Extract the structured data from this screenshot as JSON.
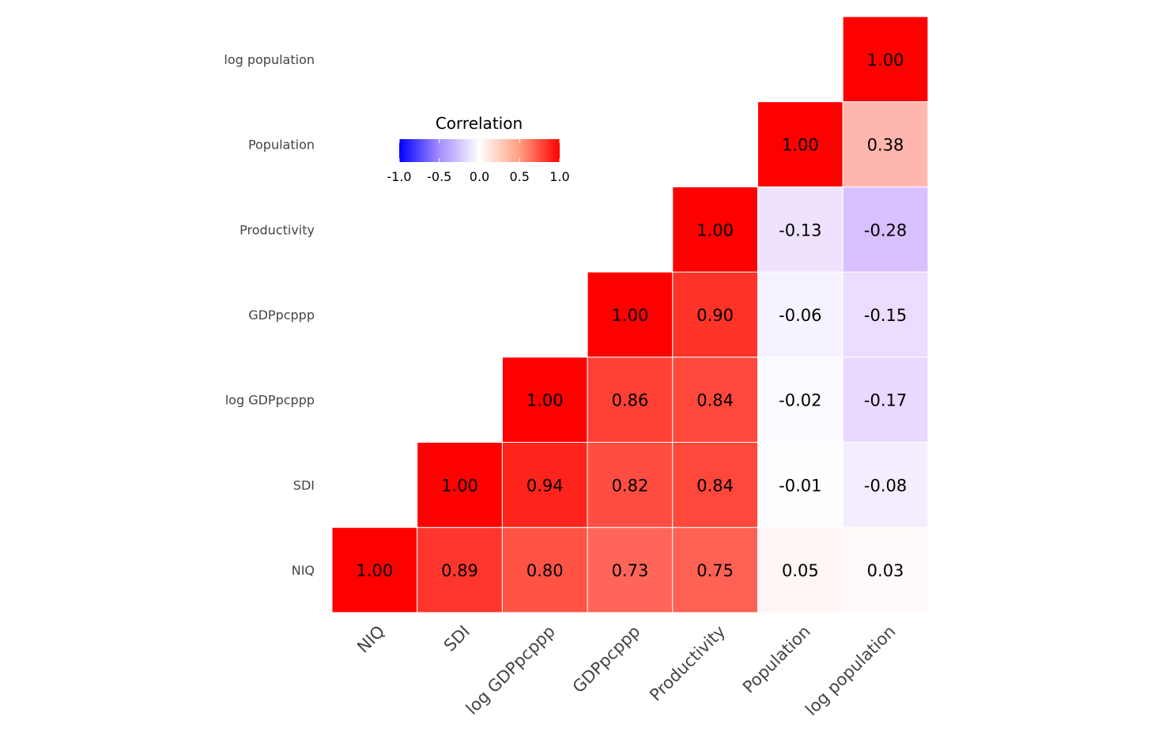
{
  "chart_data": {
    "type": "heatmap",
    "title": "",
    "variables": [
      "NIQ",
      "SDI",
      "log GDPpcppp",
      "GDPpcppp",
      "Productivity",
      "Population",
      "log population"
    ],
    "matrix": [
      [
        1.0,
        0.89,
        0.8,
        0.73,
        0.75,
        0.05,
        0.03
      ],
      [
        0.89,
        1.0,
        0.94,
        0.82,
        0.84,
        -0.01,
        -0.08
      ],
      [
        0.8,
        0.94,
        1.0,
        0.86,
        0.84,
        -0.02,
        -0.17
      ],
      [
        0.73,
        0.82,
        0.86,
        1.0,
        0.9,
        -0.06,
        -0.15
      ],
      [
        0.75,
        0.84,
        0.84,
        0.9,
        1.0,
        -0.13,
        -0.28
      ],
      [
        0.05,
        -0.01,
        -0.02,
        -0.06,
        -0.13,
        1.0,
        0.38
      ],
      [
        0.03,
        -0.08,
        -0.17,
        -0.15,
        -0.28,
        0.38,
        1.0
      ]
    ],
    "display": "upper-triangle",
    "legend": {
      "title": "Correlation",
      "ticks": [
        "-1.0",
        "-0.5",
        "0.0",
        "0.5",
        "1.0"
      ],
      "range": [
        -1,
        1
      ],
      "low_color": "#0000FF",
      "mid_color": "#FFFFFF",
      "high_color": "#FF0000",
      "placement": "top-left"
    }
  }
}
